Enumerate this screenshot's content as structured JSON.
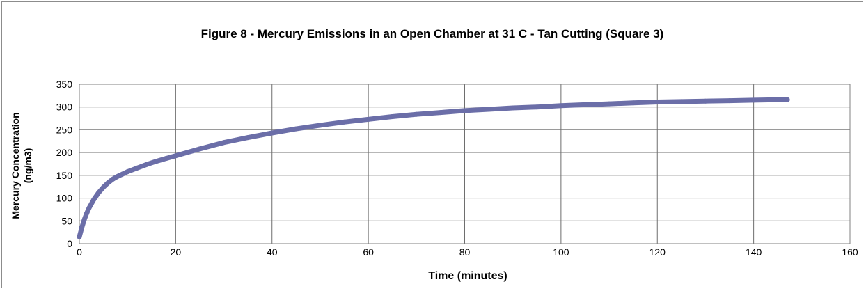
{
  "chart_data": {
    "type": "scatter",
    "title": "Figure 8 - Mercury Emissions in an Open Chamber at 31 C - Tan Cutting (Square 3)",
    "xlabel": "Time (minutes)",
    "ylabel_line1": "Mercury Concentration",
    "ylabel_line2": "(ng/m3)",
    "xlim": [
      0,
      160
    ],
    "ylim": [
      0,
      350
    ],
    "x_ticks": [
      "0",
      "20",
      "40",
      "60",
      "80",
      "100",
      "120",
      "140",
      "160"
    ],
    "y_ticks": [
      "0",
      "50",
      "100",
      "150",
      "200",
      "250",
      "300",
      "350"
    ],
    "grid": true,
    "series_color": "#6b6ea8",
    "series": [
      {
        "x": [
          0,
          0.5,
          1,
          1.5,
          2,
          3,
          4,
          5,
          6,
          7,
          8,
          9,
          10,
          12,
          14,
          16,
          18,
          20,
          25,
          30,
          35,
          40,
          45,
          50,
          55,
          60,
          65,
          70,
          75,
          80,
          85,
          90,
          95,
          100,
          105,
          110,
          115,
          120,
          125,
          130,
          135,
          140,
          145,
          147
        ],
        "y": [
          15,
          35,
          52,
          66,
          78,
          97,
          112,
          124,
          134,
          142,
          148,
          153,
          158,
          166,
          174,
          181,
          187,
          193,
          208,
          222,
          233,
          243,
          252,
          260,
          267,
          273,
          279,
          284,
          288,
          292,
          295,
          298,
          300,
          303,
          305,
          307,
          309,
          311,
          312,
          313,
          314,
          315,
          316,
          316
        ]
      }
    ]
  }
}
